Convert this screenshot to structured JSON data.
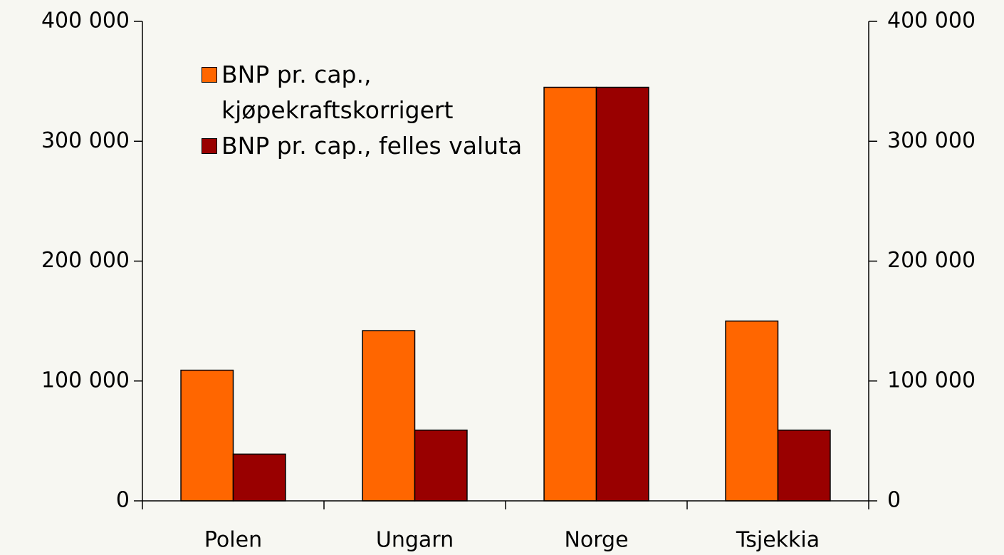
{
  "chart_data": {
    "type": "bar",
    "categories": [
      "Polen",
      "Ungarn",
      "Norge",
      "Tsjekkia"
    ],
    "series": [
      {
        "name": "BNP pr. cap., kjøpekraftskorrigert",
        "color": "#ff6600",
        "values": [
          109000,
          142000,
          345000,
          150000
        ]
      },
      {
        "name": "BNP pr. cap., felles valuta",
        "color": "#990000",
        "values": [
          39000,
          59000,
          345000,
          59000
        ]
      }
    ],
    "ylim": [
      0,
      400000
    ],
    "yticks": [
      0,
      {
        "value": 100000,
        "label": "100 000"
      },
      {
        "value": 200000,
        "label": "200 000"
      },
      {
        "value": 300000,
        "label": "300 000"
      },
      {
        "value": 400000,
        "label": "400 000"
      }
    ],
    "y2lim": [
      0,
      400000
    ],
    "y2ticks": [
      0,
      {
        "value": 100000,
        "label": "100 000"
      },
      {
        "value": 200000,
        "label": "200 000"
      },
      {
        "value": 300000,
        "label": "300 000"
      },
      {
        "value": 400000,
        "label": "400 000"
      }
    ],
    "grid": false,
    "legend": "upper left"
  }
}
